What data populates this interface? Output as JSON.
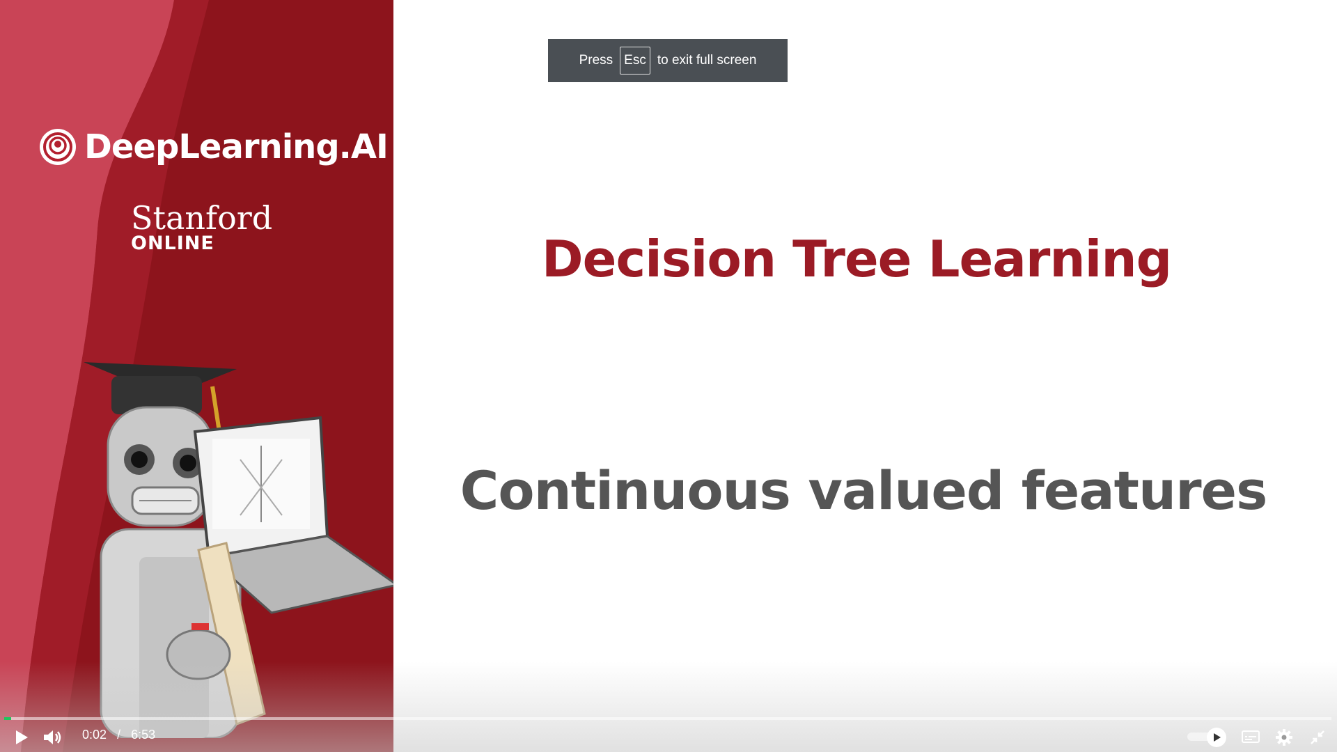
{
  "slide": {
    "brand_name": "DeepLearning.AI",
    "partner_name": "Stanford",
    "partner_sub": "ONLINE",
    "title": "Decision Tree Learning",
    "subtitle": "Continuous valued features",
    "title_color": "#9b1b25",
    "subtitle_color": "#555555",
    "panel_color": "#8d141c"
  },
  "fullscreen_toast": {
    "before": "Press",
    "key": "Esc",
    "after": "to exit full screen"
  },
  "player": {
    "current_time": "0:02",
    "separator": "/",
    "duration": "6:53",
    "progress_fraction": 0.005,
    "progress_color": "#22c55e",
    "icons": {
      "play": "play-icon",
      "volume": "volume-icon",
      "autoplay": "autoplay-toggle-icon",
      "captions": "captions-icon",
      "settings": "gear-icon",
      "exit_fullscreen": "exit-fullscreen-icon"
    }
  }
}
